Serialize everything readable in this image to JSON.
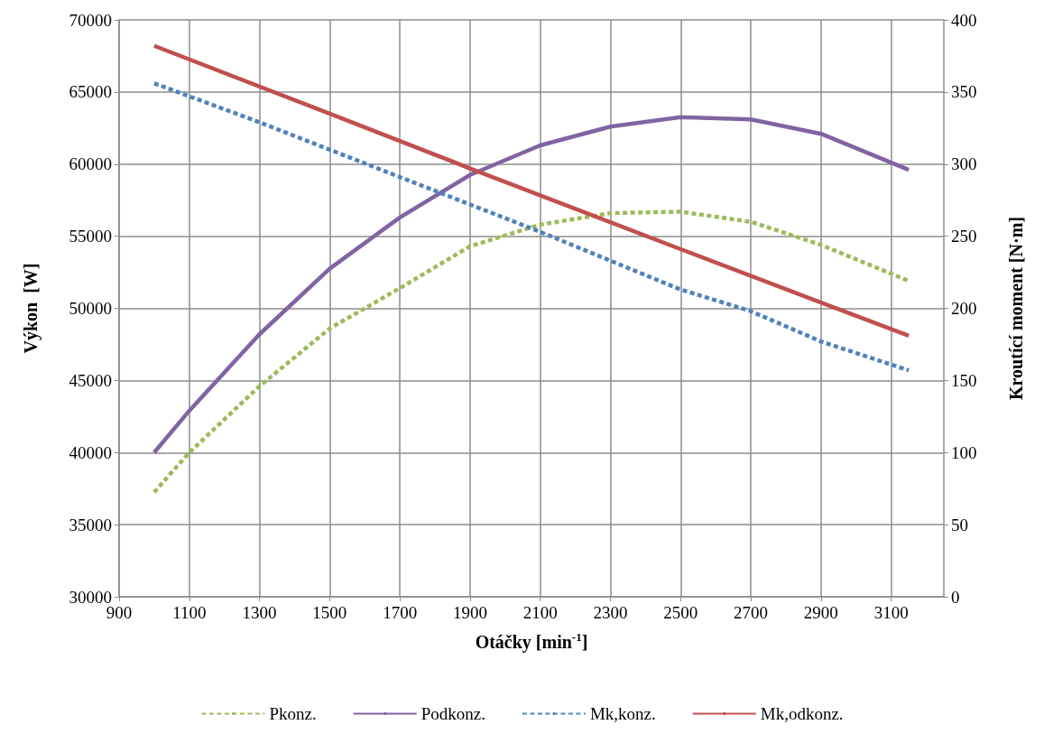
{
  "chart_data": {
    "type": "line",
    "xlabel": "Otáčky [min$^{-1}$]",
    "ylabel": "Výkon  [W]",
    "y2label": "Kroutící moment [N·m]",
    "xlim": [
      900,
      3250
    ],
    "xticks": [
      900,
      1100,
      1300,
      1500,
      1700,
      1900,
      2100,
      2300,
      2500,
      2700,
      2900,
      3100
    ],
    "ylim": [
      30000,
      70000
    ],
    "yticks": [
      30000,
      35000,
      40000,
      45000,
      50000,
      55000,
      60000,
      65000,
      70000
    ],
    "y2lim": [
      0,
      400
    ],
    "y2ticks": [
      0,
      50,
      100,
      150,
      200,
      250,
      300,
      350,
      400
    ],
    "grid": true,
    "legend": "bottom",
    "marker": "none",
    "series": [
      {
        "name": "Pkonz.",
        "color": "#9bbb59",
        "line_style": "dashed",
        "x": [
          1000,
          1100,
          1300,
          1500,
          1700,
          1900,
          2100,
          2300,
          2500,
          2700,
          2900,
          3150
        ],
        "values": [
          37250,
          40000,
          44600,
          48600,
          51400,
          54300,
          55800,
          56600,
          56700,
          56000,
          54400,
          51900
        ]
      },
      {
        "name": "Podkonz.",
        "color": "#8064a2",
        "line_style": "solid",
        "x": [
          1000,
          1100,
          1300,
          1500,
          1700,
          1900,
          2100,
          2300,
          2500,
          2700,
          2900,
          3150
        ],
        "values": [
          40000,
          42900,
          48200,
          52750,
          56300,
          59250,
          61300,
          62600,
          63250,
          63100,
          62100,
          59600
        ]
      },
      {
        "name": "Mk,konz.",
        "color": "#4f81bd",
        "line_style": "dashed",
        "axis": "y2",
        "x": [
          1000,
          1300,
          1500,
          1900,
          2100,
          2500,
          2700,
          2900,
          3150
        ],
        "values": [
          356,
          329,
          310,
          272,
          253,
          213,
          198,
          177,
          157
        ]
      },
      {
        "name": "Mk,odkonz.",
        "color": "#c0504d",
        "line_style": "solid",
        "axis": "y2",
        "x": [
          1000,
          1500,
          1900,
          2500,
          2900,
          3150
        ],
        "values": [
          382,
          335,
          297,
          241,
          204,
          181
        ]
      }
    ]
  }
}
